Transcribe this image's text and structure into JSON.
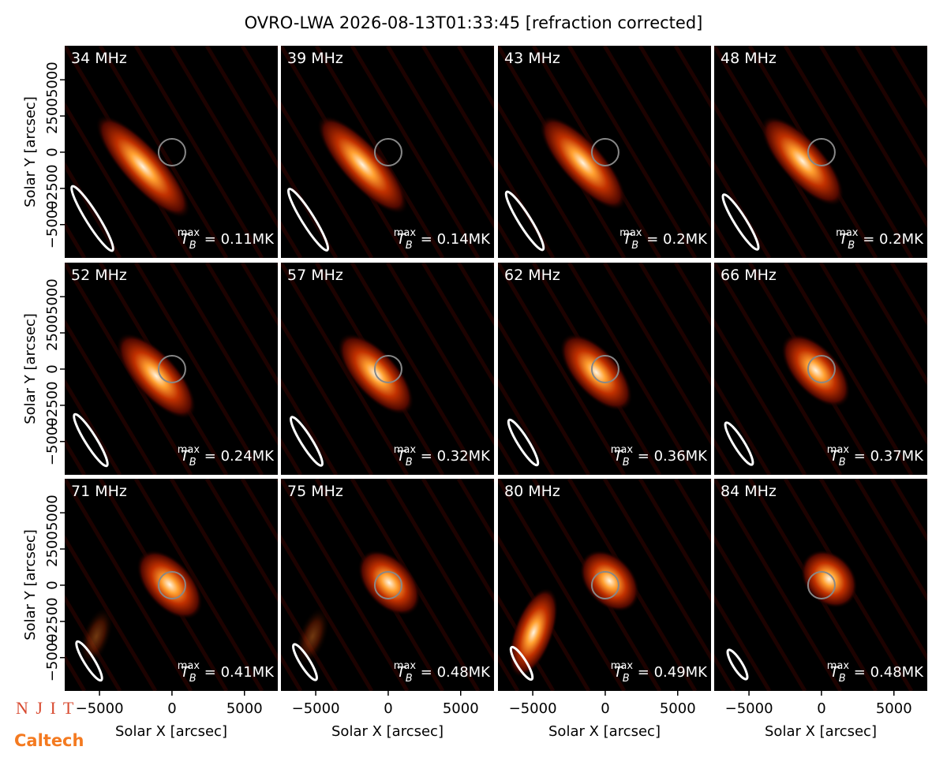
{
  "title": "OVRO-LWA 2026-08-13T01:33:45 [refraction corrected]",
  "tb": {
    "symbol": "T",
    "sub": "B",
    "sup": "max",
    "eq": " = ",
    "unit": "MK"
  },
  "logos": [
    "N J I T",
    "Caltech"
  ],
  "chart_data": [
    {
      "type": "image",
      "label": "34 MHz",
      "tb_max": 0.11,
      "xlim": [
        -7400,
        7300
      ],
      "ylim": [
        -7300,
        7350
      ],
      "ylabel": "Solar Y [arcsec]",
      "yticks": [
        {
          "value": -5000,
          "label": "−5000"
        },
        {
          "value": -2500,
          "label": "−2500"
        },
        0,
        2500,
        5000
      ]
    },
    {
      "type": "image",
      "label": "39 MHz",
      "tb_max": 0.14,
      "xlim": [
        -7400,
        7300
      ],
      "ylim": [
        -7300,
        7350
      ]
    },
    {
      "type": "image",
      "label": "43 MHz",
      "tb_max": 0.2,
      "xlim": [
        -7400,
        7300
      ],
      "ylim": [
        -7300,
        7350
      ]
    },
    {
      "type": "image",
      "label": "48 MHz",
      "tb_max": 0.2,
      "xlim": [
        -7400,
        7300
      ],
      "ylim": [
        -7300,
        7350
      ]
    },
    {
      "type": "image",
      "label": "52 MHz",
      "tb_max": 0.24,
      "xlim": [
        -7400,
        7300
      ],
      "ylim": [
        -7300,
        7350
      ],
      "ylabel": "Solar Y [arcsec]",
      "yticks": [
        {
          "value": -5000,
          "label": "−5000"
        },
        {
          "value": -2500,
          "label": "−2500"
        },
        0,
        2500,
        5000
      ]
    },
    {
      "type": "image",
      "label": "57 MHz",
      "tb_max": 0.32,
      "xlim": [
        -7400,
        7300
      ],
      "ylim": [
        -7300,
        7350
      ]
    },
    {
      "type": "image",
      "label": "62 MHz",
      "tb_max": 0.36,
      "xlim": [
        -7400,
        7300
      ],
      "ylim": [
        -7300,
        7350
      ]
    },
    {
      "type": "image",
      "label": "66 MHz",
      "tb_max": 0.37,
      "xlim": [
        -7400,
        7300
      ],
      "ylim": [
        -7300,
        7350
      ]
    },
    {
      "type": "image",
      "label": "71 MHz",
      "tb_max": 0.41,
      "xlim": [
        -7400,
        7300
      ],
      "ylim": [
        -7300,
        7350
      ],
      "ylabel": "Solar Y [arcsec]",
      "yticks": [
        {
          "value": -5000,
          "label": "−5000"
        },
        {
          "value": -2500,
          "label": "−2500"
        },
        0,
        2500,
        5000
      ],
      "xlabel": "Solar X [arcsec]",
      "xticks": [
        {
          "value": -5000,
          "label": "−5000"
        },
        0,
        5000
      ]
    },
    {
      "type": "image",
      "label": "75 MHz",
      "tb_max": 0.48,
      "xlim": [
        -7400,
        7300
      ],
      "ylim": [
        -7300,
        7350
      ],
      "xlabel": "Solar X [arcsec]",
      "xticks": [
        {
          "value": -5000,
          "label": "−5000"
        },
        0,
        5000
      ]
    },
    {
      "type": "image",
      "label": "80 MHz",
      "tb_max": 0.49,
      "xlim": [
        -7400,
        7300
      ],
      "ylim": [
        -7300,
        7350
      ],
      "xlabel": "Solar X [arcsec]",
      "xticks": [
        {
          "value": -5000,
          "label": "−5000"
        },
        0,
        5000
      ]
    },
    {
      "type": "image",
      "label": "84 MHz",
      "tb_max": 0.48,
      "xlim": [
        -7400,
        7300
      ],
      "ylim": [
        -7300,
        7350
      ],
      "xlabel": "Solar X [arcsec]",
      "xticks": [
        {
          "value": -5000,
          "label": "−5000"
        },
        0,
        5000
      ]
    }
  ]
}
